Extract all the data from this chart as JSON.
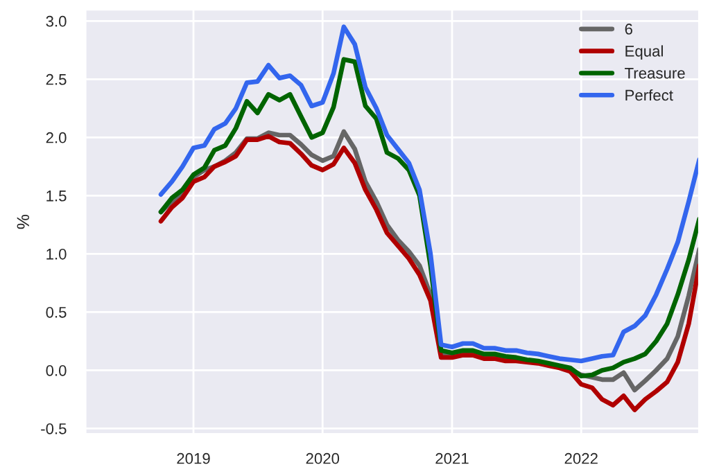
{
  "chart_data": {
    "type": "line",
    "ylabel": "%",
    "x": [
      "2018-10",
      "2018-11",
      "2018-12",
      "2019-01",
      "2019-02",
      "2019-03",
      "2019-04",
      "2019-05",
      "2019-06",
      "2019-07",
      "2019-08",
      "2019-09",
      "2019-10",
      "2019-11",
      "2019-12",
      "2020-01",
      "2020-02",
      "2020-03",
      "2020-04",
      "2020-05",
      "2020-06",
      "2020-07",
      "2020-08",
      "2020-09",
      "2020-10",
      "2020-11",
      "2020-12",
      "2021-01",
      "2021-02",
      "2021-03",
      "2021-04",
      "2021-05",
      "2021-06",
      "2021-07",
      "2021-08",
      "2021-09",
      "2021-10",
      "2021-11",
      "2021-12",
      "2022-01",
      "2022-02",
      "2022-03",
      "2022-04",
      "2022-05",
      "2022-06",
      "2022-07",
      "2022-08",
      "2022-09",
      "2022-10",
      "2022-11",
      "2022-12"
    ],
    "series": [
      {
        "name": "6",
        "color": "#666666",
        "values": [
          1.36,
          1.45,
          1.52,
          1.66,
          1.72,
          1.75,
          1.8,
          1.87,
          1.99,
          1.99,
          2.04,
          2.02,
          2.02,
          1.94,
          1.85,
          1.8,
          1.84,
          2.05,
          1.9,
          1.62,
          1.45,
          1.25,
          1.12,
          1.02,
          0.9,
          0.65,
          0.14,
          0.13,
          0.15,
          0.14,
          0.12,
          0.12,
          0.1,
          0.1,
          0.08,
          0.07,
          0.05,
          0.03,
          0.01,
          -0.04,
          -0.06,
          -0.08,
          -0.08,
          -0.02,
          -0.17,
          -0.09,
          0.0,
          0.1,
          0.29,
          0.64,
          1.04
        ]
      },
      {
        "name": "Equal",
        "color": "#b00000",
        "values": [
          1.28,
          1.4,
          1.48,
          1.62,
          1.66,
          1.75,
          1.79,
          1.84,
          1.98,
          1.98,
          2.01,
          1.96,
          1.95,
          1.86,
          1.76,
          1.72,
          1.77,
          1.91,
          1.78,
          1.55,
          1.38,
          1.18,
          1.07,
          0.96,
          0.82,
          0.6,
          0.11,
          0.11,
          0.13,
          0.13,
          0.1,
          0.1,
          0.08,
          0.08,
          0.07,
          0.06,
          0.04,
          0.02,
          -0.01,
          -0.12,
          -0.15,
          -0.25,
          -0.3,
          -0.22,
          -0.34,
          -0.25,
          -0.18,
          -0.1,
          0.07,
          0.4,
          0.9
        ]
      },
      {
        "name": "Treasure",
        "color": "#006400",
        "values": [
          1.36,
          1.48,
          1.55,
          1.68,
          1.74,
          1.89,
          1.93,
          2.08,
          2.31,
          2.21,
          2.37,
          2.32,
          2.37,
          2.18,
          2.0,
          2.04,
          2.26,
          2.67,
          2.65,
          2.27,
          2.16,
          1.87,
          1.82,
          1.72,
          1.5,
          0.9,
          0.17,
          0.15,
          0.17,
          0.17,
          0.14,
          0.14,
          0.12,
          0.11,
          0.09,
          0.08,
          0.06,
          0.04,
          0.02,
          -0.05,
          -0.04,
          0.0,
          0.02,
          0.07,
          0.1,
          0.14,
          0.25,
          0.4,
          0.65,
          0.95,
          1.3
        ]
      },
      {
        "name": "Perfect",
        "color": "#3366ee",
        "values": [
          1.51,
          1.62,
          1.75,
          1.91,
          1.93,
          2.07,
          2.12,
          2.25,
          2.47,
          2.48,
          2.62,
          2.51,
          2.53,
          2.45,
          2.27,
          2.3,
          2.55,
          2.95,
          2.8,
          2.43,
          2.25,
          2.02,
          1.9,
          1.78,
          1.55,
          1.0,
          0.22,
          0.2,
          0.23,
          0.23,
          0.19,
          0.19,
          0.17,
          0.17,
          0.15,
          0.14,
          0.12,
          0.1,
          0.09,
          0.08,
          0.1,
          0.12,
          0.13,
          0.33,
          0.38,
          0.47,
          0.65,
          0.87,
          1.1,
          1.45,
          1.81
        ]
      }
    ],
    "xlim": [
      "2018-03",
      "2022-12"
    ],
    "xticks": [
      {
        "value": "2019-01",
        "label": "2019"
      },
      {
        "value": "2020-01",
        "label": "2020"
      },
      {
        "value": "2021-01",
        "label": "2021"
      },
      {
        "value": "2022-01",
        "label": "2022"
      }
    ],
    "ylim": [
      -0.55,
      3.1
    ],
    "yticks": [
      -0.5,
      {
        "value": 0,
        "label": "0.0"
      },
      0.5,
      {
        "value": 1,
        "label": "1.0"
      },
      1.5,
      {
        "value": 2,
        "label": "2.0"
      },
      2.5,
      {
        "value": 3,
        "label": "3.0"
      }
    ],
    "grid": true,
    "legend": "top right",
    "marker": "none",
    "line_style": "solid"
  }
}
